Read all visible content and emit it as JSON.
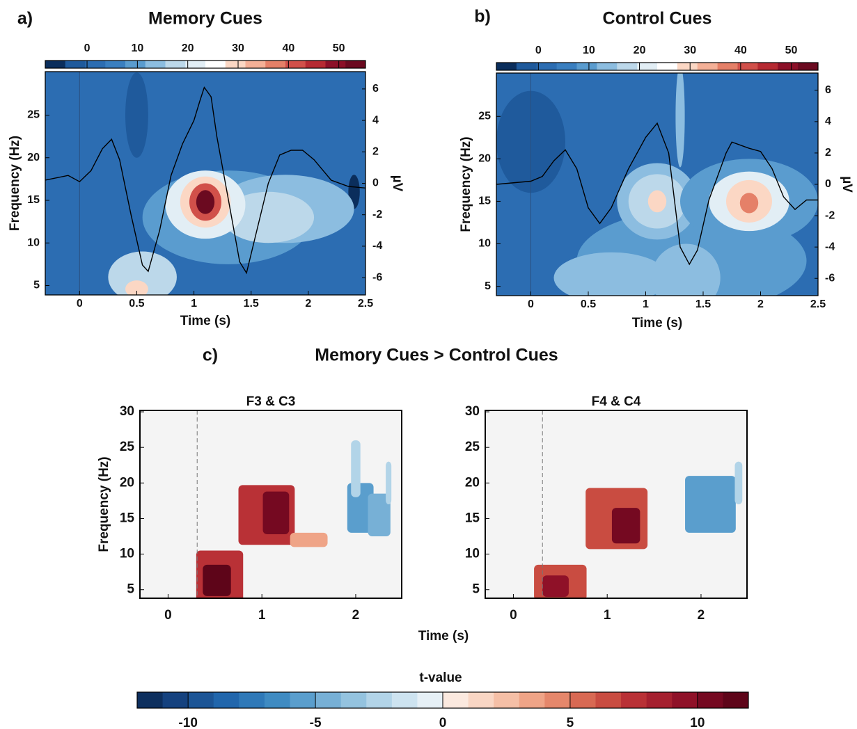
{
  "panel_labels": [
    "a)",
    "b)",
    "c)"
  ],
  "panel_c": {
    "title": "Memory Cues > Control Cues",
    "xlabel": "Time (s)"
  },
  "t_colorbar": {
    "label": "t-value",
    "range": [
      -12,
      12
    ],
    "ticks": [
      -10,
      -5,
      0,
      5,
      10
    ],
    "colors": [
      "#0d2f5e",
      "#15427f",
      "#1c5596",
      "#2166ac",
      "#2f79b8",
      "#3f8bc2",
      "#5a9ecd",
      "#77b0d6",
      "#94c3df",
      "#b2d4e8",
      "#cde3f0",
      "#e6f0f6",
      "#fbe9df",
      "#f9d6c4",
      "#f5bfa6",
      "#efa487",
      "#e5876b",
      "#d86953",
      "#c94c41",
      "#b93136",
      "#a5202f",
      "#8f1128",
      "#750921",
      "#5e0519"
    ]
  },
  "chart_data": [
    {
      "type": "contour",
      "title": "Memory Cues",
      "xlabel": "Time (s)",
      "ylabel": "Frequency (Hz)",
      "y2label": "µV",
      "xlim": [
        -0.3,
        2.5
      ],
      "ylim": [
        3.9,
        30.1
      ],
      "y2lim": [
        -7.1,
        7.1
      ],
      "xticks": [
        0,
        0.5,
        1,
        1.5,
        2,
        2.5
      ],
      "yticks": [
        5,
        10,
        15,
        20,
        25
      ],
      "y2ticks": [
        -6,
        -4,
        -2,
        0,
        2,
        4,
        6
      ],
      "background": 3,
      "colorbar": {
        "range": [
          -8.3,
          55.3
        ],
        "ticks": [
          0,
          10,
          20,
          30,
          40,
          50
        ],
        "colors": [
          "#0b2e5c",
          "#1f5a9c",
          "#2c6db2",
          "#3a7fc0",
          "#5a9ccf",
          "#8cbde0",
          "#bcd8ea",
          "#e2eef5",
          "#ffffff",
          "#fbd7c4",
          "#f4b097",
          "#e58068",
          "#d1504a",
          "#b62a32",
          "#8c1028",
          "#6b0a20"
        ]
      },
      "blobs": [
        {
          "time": 0.5,
          "freq": 25,
          "dt": 0.1,
          "df": 5,
          "value": -3
        },
        {
          "time": 2.4,
          "freq": 16,
          "dt": 0.05,
          "df": 2,
          "value": -6
        },
        {
          "time": 1.3,
          "freq": 13,
          "dt": 0.75,
          "df": 5.5,
          "value": 10
        },
        {
          "time": 1.8,
          "freq": 14,
          "dt": 0.6,
          "df": 4,
          "value": 13
        },
        {
          "time": 0.55,
          "freq": 6,
          "dt": 0.3,
          "df": 3,
          "value": 18
        },
        {
          "time": 0.5,
          "freq": 4.6,
          "dt": 0.1,
          "df": 1,
          "value": 30
        },
        {
          "time": 1.65,
          "freq": 13,
          "dt": 0.4,
          "df": 3,
          "value": 18
        },
        {
          "time": 1.1,
          "freq": 14.5,
          "dt": 0.35,
          "df": 4,
          "value": 22
        },
        {
          "time": 1.1,
          "freq": 14.8,
          "dt": 0.22,
          "df": 3,
          "value": 30
        },
        {
          "time": 1.1,
          "freq": 14.8,
          "dt": 0.14,
          "df": 2.2,
          "value": 40
        },
        {
          "time": 1.1,
          "freq": 14.8,
          "dt": 0.08,
          "df": 1.4,
          "value": 52
        }
      ],
      "erp": {
        "color": "#000000",
        "axis": "y2",
        "x": [
          -0.3,
          -0.1,
          0,
          0.1,
          0.2,
          0.28,
          0.35,
          0.45,
          0.55,
          0.6,
          0.7,
          0.8,
          0.9,
          1.0,
          1.05,
          1.09,
          1.15,
          1.2,
          1.3,
          1.4,
          1.46,
          1.55,
          1.65,
          1.75,
          1.85,
          1.95,
          2.05,
          2.2,
          2.35,
          2.5
        ],
        "values": [
          0.2,
          0.5,
          0.1,
          0.8,
          2.2,
          2.8,
          1.5,
          -2,
          -5.2,
          -5.6,
          -3,
          0.5,
          2.5,
          4,
          5.2,
          6.1,
          5.5,
          3,
          -1,
          -5,
          -5.7,
          -3,
          0,
          1.8,
          2.1,
          2.1,
          1.5,
          0.2,
          -0.2,
          -0.3
        ]
      }
    },
    {
      "type": "contour",
      "title": "Control Cues",
      "xlabel": "Time (s)",
      "ylabel": "Frequency (Hz)",
      "y2label": "µV",
      "xlim": [
        -0.3,
        2.5
      ],
      "ylim": [
        3.9,
        30.1
      ],
      "y2lim": [
        -7.1,
        7.1
      ],
      "xticks": [
        0,
        0.5,
        1,
        1.5,
        2,
        2.5
      ],
      "yticks": [
        5,
        10,
        15,
        20,
        25
      ],
      "y2ticks": [
        -6,
        -4,
        -2,
        0,
        2,
        4,
        6
      ],
      "background": 3,
      "colorbar": {
        "range": [
          -8.3,
          55.3
        ],
        "ticks": [
          0,
          10,
          20,
          30,
          40,
          50
        ],
        "colors": [
          "#0b2e5c",
          "#1f5a9c",
          "#2c6db2",
          "#3a7fc0",
          "#5a9ccf",
          "#8cbde0",
          "#bcd8ea",
          "#e2eef5",
          "#ffffff",
          "#fbd7c4",
          "#f4b097",
          "#e58068",
          "#d1504a",
          "#b62a32",
          "#8c1028",
          "#6b0a20"
        ]
      },
      "blobs": [
        {
          "time": 0.0,
          "freq": 22,
          "dt": 0.3,
          "df": 6,
          "value": -2
        },
        {
          "time": 1.4,
          "freq": 8,
          "dt": 1.0,
          "df": 6,
          "value": 9
        },
        {
          "time": 0.7,
          "freq": 6,
          "dt": 0.5,
          "df": 3,
          "value": 12
        },
        {
          "time": 1.35,
          "freq": 6,
          "dt": 0.3,
          "df": 4,
          "value": 15
        },
        {
          "time": 1.3,
          "freq": 25,
          "dt": 0.04,
          "df": 6,
          "value": 14
        },
        {
          "time": 1.1,
          "freq": 15,
          "dt": 0.35,
          "df": 4.5,
          "value": 12
        },
        {
          "time": 1.1,
          "freq": 15,
          "dt": 0.25,
          "df": 3.2,
          "value": 19
        },
        {
          "time": 1.1,
          "freq": 15,
          "dt": 0.08,
          "df": 1.3,
          "value": 29
        },
        {
          "time": 1.9,
          "freq": 15,
          "dt": 0.6,
          "df": 5,
          "value": 11
        },
        {
          "time": 1.9,
          "freq": 15,
          "dt": 0.35,
          "df": 3.5,
          "value": 21
        },
        {
          "time": 1.9,
          "freq": 15,
          "dt": 0.2,
          "df": 2.5,
          "value": 31
        },
        {
          "time": 1.9,
          "freq": 14.8,
          "dt": 0.08,
          "df": 1.2,
          "value": 39
        }
      ],
      "erp": {
        "color": "#000000",
        "axis": "y2",
        "x": [
          -0.3,
          0,
          0.1,
          0.2,
          0.3,
          0.4,
          0.5,
          0.6,
          0.7,
          0.85,
          1.0,
          1.1,
          1.2,
          1.3,
          1.38,
          1.45,
          1.55,
          1.7,
          1.75,
          1.9,
          2.0,
          2.1,
          2.2,
          2.3,
          2.4,
          2.5
        ],
        "values": [
          0,
          0.2,
          0.5,
          1.5,
          2.2,
          1,
          -1.5,
          -2.5,
          -1.5,
          1,
          3,
          3.9,
          2,
          -4,
          -5.1,
          -4.2,
          -1,
          2,
          2.7,
          2.3,
          2.1,
          1,
          -0.8,
          -1.6,
          -1,
          -1
        ]
      }
    },
    {
      "type": "heatmap",
      "title": "F3 & C3",
      "ylabel": "Frequency (Hz)",
      "xlim": [
        -0.3,
        2.49
      ],
      "ylim": [
        3.8,
        30.2
      ],
      "xticks": [
        0,
        1,
        2
      ],
      "yticks": [
        5,
        10,
        15,
        20,
        25,
        30
      ],
      "background": "#f4f4f4",
      "vline": 0.31,
      "blobs": [
        {
          "time": 0.55,
          "freq": 6.5,
          "dt": 0.25,
          "df": 4,
          "value": 7
        },
        {
          "time": 0.52,
          "freq": 6.3,
          "dt": 0.15,
          "df": 2.2,
          "value": 11
        },
        {
          "time": 1.05,
          "freq": 15.5,
          "dt": 0.3,
          "df": 4.2,
          "value": 7
        },
        {
          "time": 1.15,
          "freq": 15.8,
          "dt": 0.14,
          "df": 3,
          "value": 10
        },
        {
          "time": 1.5,
          "freq": 12,
          "dt": 0.2,
          "df": 1,
          "value": 3
        },
        {
          "time": 2.05,
          "freq": 16.5,
          "dt": 0.14,
          "df": 3.5,
          "value": -6
        },
        {
          "time": 2.25,
          "freq": 15.5,
          "dt": 0.12,
          "df": 3,
          "value": -5
        },
        {
          "time": 2.0,
          "freq": 22,
          "dt": 0.05,
          "df": 4,
          "value": -3
        },
        {
          "time": 2.35,
          "freq": 20,
          "dt": 0.03,
          "df": 3,
          "value": -2.5
        }
      ]
    },
    {
      "type": "heatmap",
      "title": "F4 & C4",
      "xlim": [
        -0.3,
        2.49
      ],
      "ylim": [
        3.8,
        30.2
      ],
      "xticks": [
        0,
        1,
        2
      ],
      "yticks": [
        5,
        10,
        15,
        20,
        25,
        30
      ],
      "background": "#f4f4f4",
      "vline": 0.31,
      "blobs": [
        {
          "time": 0.5,
          "freq": 6,
          "dt": 0.28,
          "df": 2.5,
          "value": 6
        },
        {
          "time": 0.45,
          "freq": 5.5,
          "dt": 0.14,
          "df": 1.5,
          "value": 9
        },
        {
          "time": 1.1,
          "freq": 15,
          "dt": 0.33,
          "df": 4.3,
          "value": 6
        },
        {
          "time": 1.2,
          "freq": 14,
          "dt": 0.15,
          "df": 2.5,
          "value": 10
        },
        {
          "time": 2.1,
          "freq": 17,
          "dt": 0.27,
          "df": 4,
          "value": -6
        },
        {
          "time": 2.4,
          "freq": 20,
          "dt": 0.04,
          "df": 3,
          "value": -3
        }
      ]
    }
  ]
}
